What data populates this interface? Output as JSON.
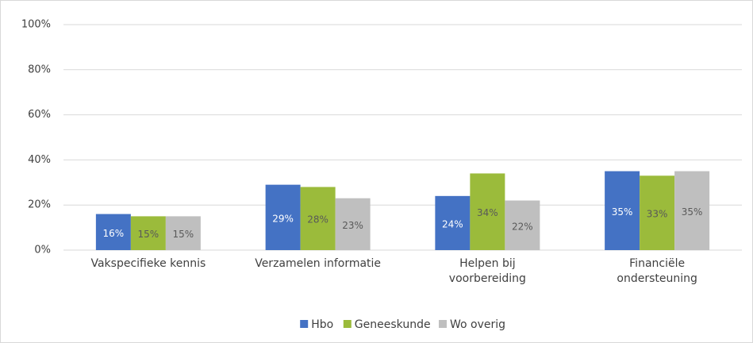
{
  "chart_data": {
    "type": "bar",
    "categories": [
      "Vakspecifieke kennis",
      "Verzamelen informatie",
      "Helpen bij\nvoorbereiding",
      "Financiële\nondersteuning"
    ],
    "series": [
      {
        "name": "Hbo",
        "color": "#4472c4",
        "label_color": "#ffffff",
        "values": [
          16,
          29,
          24,
          35
        ],
        "value_labels": [
          "16%",
          "29%",
          "24%",
          "35%"
        ]
      },
      {
        "name": "Geneeskunde",
        "color": "#9bbb3b",
        "label_color": "#595959",
        "values": [
          15,
          28,
          34,
          33
        ],
        "value_labels": [
          "15%",
          "28%",
          "34%",
          "33%"
        ]
      },
      {
        "name": "Wo overig",
        "color": "#bfbfbf",
        "label_color": "#595959",
        "values": [
          15,
          23,
          22,
          35
        ],
        "value_labels": [
          "15%",
          "23%",
          "22%",
          "35%"
        ]
      }
    ],
    "ylim": [
      0,
      100
    ],
    "yticks": [
      {
        "value": 0,
        "label": "0%"
      },
      {
        "value": 20,
        "label": "20%"
      },
      {
        "value": 40,
        "label": "40%"
      },
      {
        "value": 60,
        "label": "60%"
      },
      {
        "value": 80,
        "label": "80%"
      },
      {
        "value": 100,
        "label": "100%"
      }
    ],
    "grid": true,
    "legend": "bottom"
  }
}
